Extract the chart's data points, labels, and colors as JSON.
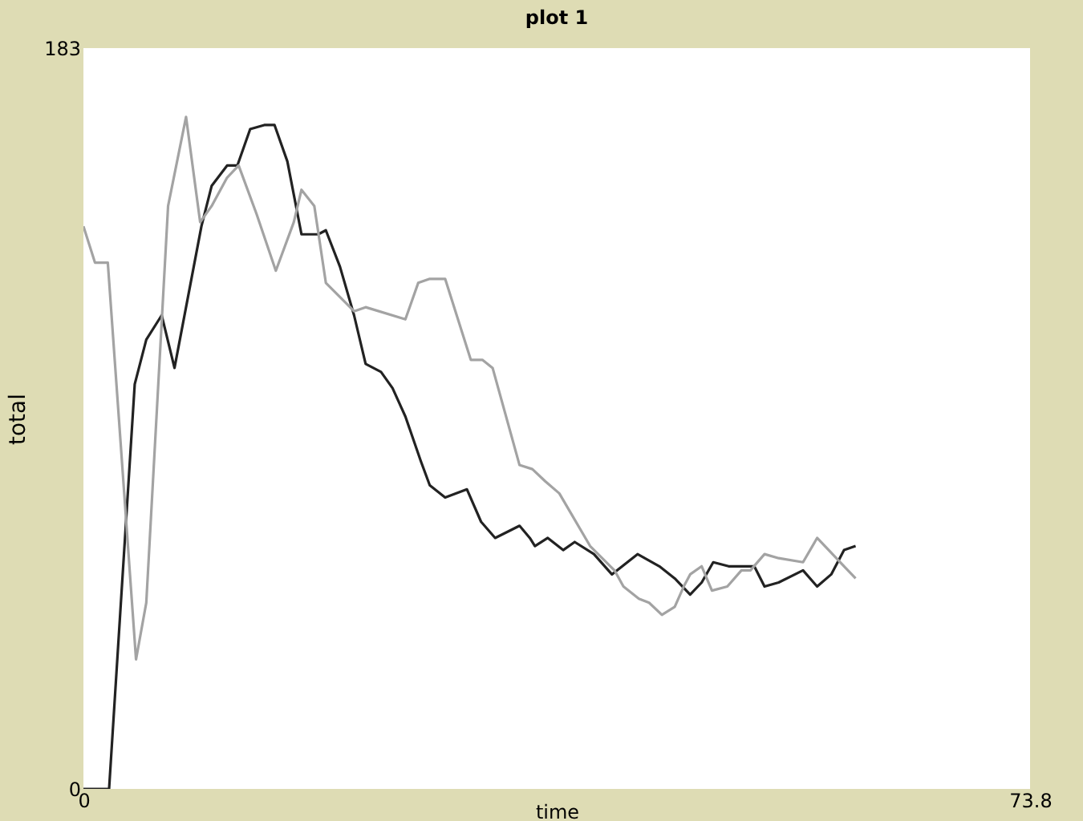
{
  "chart_data": {
    "type": "line",
    "title": "plot 1",
    "xlabel": "time",
    "ylabel": "total",
    "xlim": [
      0,
      73.8
    ],
    "ylim": [
      0,
      183
    ],
    "xticks": [
      0,
      73.8
    ],
    "yticks": [
      0,
      183
    ],
    "grid": false,
    "legend": false,
    "line_style": "solid",
    "series": [
      {
        "color": "#222222",
        "x": [
          0,
          2.0,
          4.0,
          4.9,
          6.1,
          7.1,
          9.2,
          10,
          11.2,
          12,
          13,
          14.1,
          14.9,
          15.9,
          17,
          18.3,
          18.9,
          20,
          21.1,
          22,
          23.2,
          24.1,
          25.1,
          26.3,
          27,
          28.2,
          29.9,
          31,
          32.1,
          34,
          34.8,
          35.2,
          36.2,
          37.4,
          38.3,
          39.8,
          41.2,
          43.2,
          44.9,
          46.1,
          47.3,
          48.2,
          49.1,
          50.3,
          52.3,
          53.1,
          54.2,
          56.1,
          57.2,
          58.3,
          59.3,
          60.2
        ],
        "values": [
          0,
          0,
          100,
          111,
          117,
          104,
          139,
          149,
          154,
          154,
          163,
          164,
          164,
          155,
          137,
          137,
          138,
          129,
          117,
          105,
          103,
          99,
          92,
          81,
          75,
          72,
          74,
          66,
          62,
          65,
          62,
          60,
          62,
          59,
          61,
          58,
          53,
          58,
          55,
          52,
          48,
          51,
          56,
          55,
          55,
          50,
          51,
          54,
          50,
          53,
          59,
          60
        ]
      },
      {
        "color": "#a3a3a3",
        "x": [
          0,
          0.9,
          1.9,
          4.1,
          4.9,
          6.6,
          8,
          9.1,
          10,
          11.2,
          12.1,
          13.5,
          15,
          16.4,
          17,
          18,
          18.9,
          21.1,
          22,
          25.1,
          26.1,
          27,
          28.2,
          30.2,
          31.1,
          31.9,
          34,
          35,
          36,
          37.1,
          39.5,
          41.4,
          42.1,
          43.3,
          44.1,
          45.1,
          46.1,
          46.8,
          47.3,
          48.2,
          49,
          50.2,
          51.3,
          52,
          53.1,
          54.2,
          56.1,
          57.2,
          58.4,
          59.3,
          60.2
        ],
        "values": [
          139,
          130,
          130,
          32,
          46,
          144,
          166,
          140,
          144,
          151,
          154,
          142,
          128,
          140,
          148,
          144,
          125,
          118,
          119,
          116,
          125,
          126,
          126,
          106,
          106,
          104,
          80,
          79,
          76,
          73,
          60,
          54,
          50,
          47,
          46,
          43,
          45,
          50,
          53,
          55,
          49,
          50,
          54,
          54,
          58,
          57,
          56,
          62,
          58,
          55,
          52
        ]
      }
    ]
  }
}
